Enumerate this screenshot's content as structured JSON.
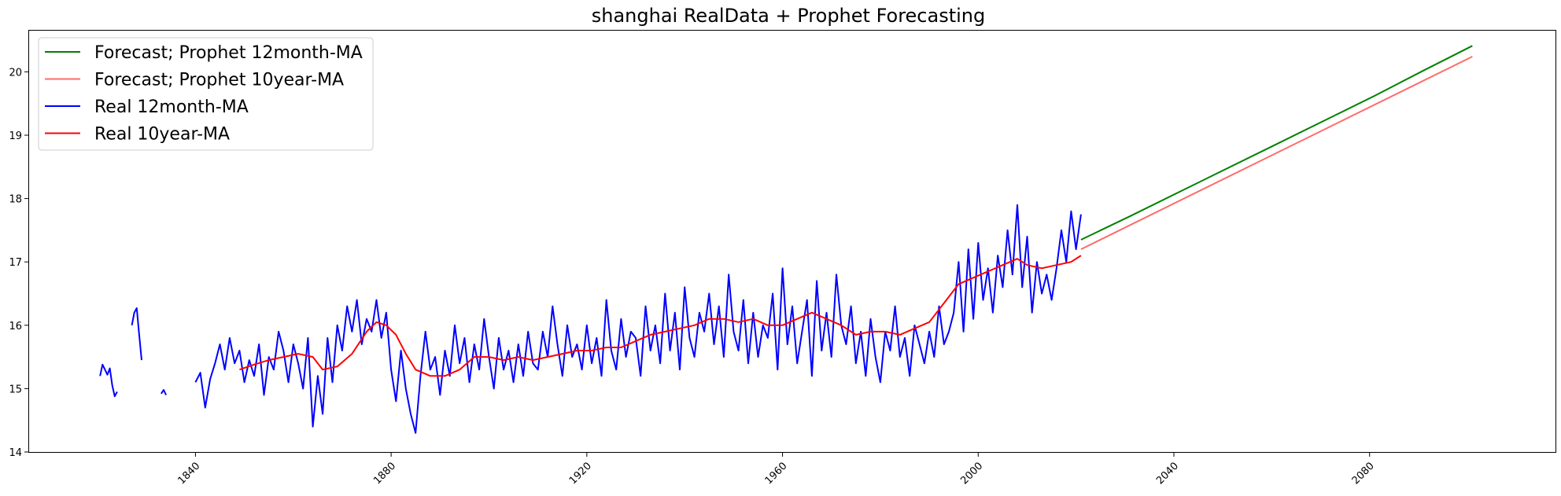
{
  "chart_data": {
    "type": "line",
    "title": "shanghai RealData + Prophet Forecasting",
    "xlabel": "",
    "ylabel": "",
    "xlim": [
      1806,
      2118
    ],
    "ylim": [
      14,
      20.65
    ],
    "x_ticks": [
      1840,
      1880,
      1920,
      1960,
      2000,
      2040,
      2080
    ],
    "y_ticks": [
      14,
      15,
      16,
      17,
      18,
      19,
      20
    ],
    "grid": false,
    "legend_position": "top-left",
    "series": [
      {
        "name": "Forecast; Prophet 12month-MA",
        "color": "#008000",
        "x": [
          2021,
          2031,
          2041,
          2051,
          2061,
          2071,
          2081,
          2091,
          2101
        ],
        "y": [
          17.35,
          17.72,
          18.1,
          18.48,
          18.86,
          19.24,
          19.62,
          20.02,
          20.41
        ]
      },
      {
        "name": "Forecast; Prophet 10year-MA",
        "color": "#ff6a6a",
        "x": [
          2021,
          2101
        ],
        "y": [
          17.2,
          20.24
        ]
      },
      {
        "name": "Real 12month-MA",
        "color": "#0000ff",
        "segments": [
          {
            "x": [
              1820.5,
              1821,
              1821.5,
              1822,
              1822.5,
              1823,
              1823.5,
              1824
            ],
            "y": [
              15.2,
              15.38,
              15.3,
              15.22,
              15.32,
              15.05,
              14.88,
              14.95
            ]
          },
          {
            "x": [
              1827,
              1827.5,
              1828,
              1828.5,
              1829
            ],
            "y": [
              16.0,
              16.2,
              16.27,
              15.85,
              15.45
            ]
          },
          {
            "x": [
              1833,
              1833.5,
              1834
            ],
            "y": [
              14.92,
              14.98,
              14.9
            ]
          },
          {
            "x": [
              1840,
              1841,
              1842,
              1843,
              1844,
              1845,
              1846,
              1847,
              1848,
              1849,
              1850,
              1851,
              1852,
              1853,
              1854,
              1855,
              1856,
              1857,
              1858,
              1859,
              1860,
              1861,
              1862,
              1863,
              1864,
              1865,
              1866,
              1867,
              1868,
              1869,
              1870,
              1871,
              1872,
              1873,
              1874,
              1875,
              1876,
              1877,
              1878,
              1879,
              1880,
              1881,
              1882,
              1883,
              1884,
              1885,
              1886,
              1887,
              1888,
              1889,
              1890,
              1891,
              1892,
              1893,
              1894,
              1895,
              1896,
              1897,
              1898,
              1899,
              1900,
              1901,
              1902,
              1903,
              1904,
              1905,
              1906,
              1907,
              1908,
              1909,
              1910,
              1911,
              1912,
              1913,
              1914,
              1915,
              1916,
              1917,
              1918,
              1919,
              1920,
              1921,
              1922,
              1923,
              1924,
              1925,
              1926,
              1927,
              1928,
              1929,
              1930,
              1931,
              1932,
              1933,
              1934,
              1935,
              1936,
              1937,
              1938,
              1939,
              1940,
              1941,
              1942,
              1943,
              1944,
              1945,
              1946,
              1947,
              1948,
              1949,
              1950,
              1951,
              1952,
              1953,
              1954,
              1955,
              1956,
              1957,
              1958,
              1959,
              1960,
              1961,
              1962,
              1963,
              1964,
              1965,
              1966,
              1967,
              1968,
              1969,
              1970,
              1971,
              1972,
              1973,
              1974,
              1975,
              1976,
              1977,
              1978,
              1979,
              1980,
              1981,
              1982,
              1983,
              1984,
              1985,
              1986,
              1987,
              1988,
              1989,
              1990,
              1991,
              1992,
              1993,
              1994,
              1995,
              1996,
              1997,
              1998,
              1999,
              2000,
              2001,
              2002,
              2003,
              2004,
              2005,
              2006,
              2007,
              2008,
              2009,
              2010,
              2011,
              2012,
              2013,
              2014,
              2015,
              2016,
              2017,
              2018,
              2019,
              2020,
              2021
            ],
            "y": [
              15.1,
              15.25,
              14.7,
              15.15,
              15.4,
              15.7,
              15.3,
              15.8,
              15.4,
              15.6,
              15.1,
              15.45,
              15.2,
              15.7,
              14.9,
              15.5,
              15.3,
              15.9,
              15.6,
              15.1,
              15.7,
              15.4,
              15.0,
              15.8,
              14.4,
              15.2,
              14.6,
              15.8,
              15.1,
              16.0,
              15.6,
              16.3,
              15.9,
              16.4,
              15.7,
              16.1,
              15.9,
              16.4,
              15.8,
              16.2,
              15.3,
              14.8,
              15.6,
              15.0,
              14.6,
              14.3,
              15.2,
              15.9,
              15.3,
              15.5,
              14.9,
              15.6,
              15.2,
              16.0,
              15.4,
              15.8,
              15.1,
              15.7,
              15.3,
              16.1,
              15.5,
              15.0,
              15.8,
              15.3,
              15.6,
              15.1,
              15.7,
              15.2,
              15.9,
              15.4,
              15.3,
              15.9,
              15.5,
              16.3,
              15.7,
              15.2,
              16.0,
              15.5,
              15.7,
              15.3,
              16.0,
              15.4,
              15.8,
              15.2,
              16.4,
              15.6,
              15.3,
              16.1,
              15.5,
              15.9,
              15.8,
              15.2,
              16.3,
              15.6,
              16.0,
              15.4,
              16.5,
              15.6,
              16.2,
              15.3,
              16.6,
              15.8,
              15.5,
              16.2,
              15.9,
              16.5,
              15.7,
              16.3,
              15.5,
              16.8,
              15.9,
              15.6,
              16.4,
              15.4,
              16.2,
              15.5,
              16.0,
              15.8,
              16.5,
              15.3,
              16.9,
              15.7,
              16.3,
              15.4,
              15.9,
              16.4,
              15.2,
              16.7,
              15.6,
              16.2,
              15.5,
              16.8,
              16.0,
              15.7,
              16.3,
              15.4,
              15.9,
              15.2,
              16.1,
              15.5,
              15.1,
              15.9,
              15.6,
              16.3,
              15.5,
              15.8,
              15.2,
              16.0,
              15.7,
              15.4,
              15.9,
              15.5,
              16.3,
              15.7,
              15.9,
              16.2,
              17.0,
              15.9,
              17.2,
              16.1,
              17.3,
              16.4,
              16.9,
              16.2,
              17.1,
              16.6,
              17.5,
              16.8,
              17.9,
              16.6,
              17.4,
              16.2,
              17.0,
              16.5,
              16.8,
              16.4,
              16.9,
              17.5,
              17.0,
              17.8,
              17.2,
              17.75
            ]
          }
        ]
      },
      {
        "name": "Real 10year-MA",
        "color": "#ff0000",
        "x": [
          1849,
          1852,
          1855,
          1858,
          1861,
          1864,
          1866,
          1869,
          1872,
          1875,
          1877,
          1879,
          1881,
          1883,
          1885,
          1888,
          1891,
          1894,
          1897,
          1900,
          1903,
          1906,
          1909,
          1912,
          1915,
          1918,
          1921,
          1924,
          1927,
          1930,
          1933,
          1936,
          1939,
          1942,
          1945,
          1948,
          1951,
          1954,
          1957,
          1960,
          1963,
          1966,
          1969,
          1972,
          1975,
          1978,
          1981,
          1984,
          1987,
          1990,
          1993,
          1996,
          1999,
          2002,
          2005,
          2008,
          2010,
          2013,
          2016,
          2019,
          2021
        ],
        "y": [
          15.3,
          15.38,
          15.45,
          15.5,
          15.55,
          15.5,
          15.3,
          15.35,
          15.55,
          15.9,
          16.05,
          16.0,
          15.85,
          15.55,
          15.3,
          15.2,
          15.2,
          15.3,
          15.5,
          15.5,
          15.45,
          15.5,
          15.45,
          15.5,
          15.55,
          15.6,
          15.6,
          15.65,
          15.65,
          15.75,
          15.85,
          15.9,
          15.95,
          16.0,
          16.1,
          16.1,
          16.05,
          16.1,
          16.0,
          16.0,
          16.1,
          16.2,
          16.1,
          16.0,
          15.85,
          15.9,
          15.9,
          15.85,
          15.95,
          16.05,
          16.35,
          16.65,
          16.75,
          16.85,
          16.95,
          17.05,
          16.95,
          16.9,
          16.95,
          17.0,
          17.1
        ]
      }
    ]
  }
}
